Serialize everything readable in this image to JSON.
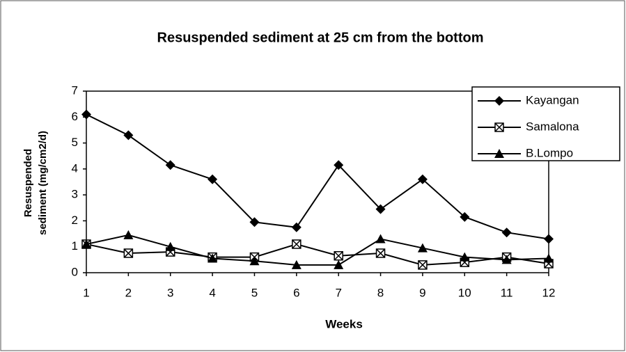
{
  "chart_data": {
    "type": "line",
    "title": "Resuspended sediment at 25 cm from the bottom",
    "x_label": "Weeks",
    "y_label": [
      "Resuspended",
      "sediment (mg/cm2/d)"
    ],
    "x": [
      1,
      2,
      3,
      4,
      5,
      6,
      7,
      8,
      9,
      10,
      11,
      12
    ],
    "xlim": [
      1,
      12
    ],
    "xticks": [
      1,
      2,
      3,
      4,
      5,
      6,
      7,
      8,
      9,
      10,
      11,
      12
    ],
    "ylim": [
      0,
      7
    ],
    "yticks": [
      0,
      1,
      2,
      3,
      4,
      5,
      6,
      7
    ],
    "grid": false,
    "legend": "upper right",
    "series": [
      {
        "name": "Kayangan",
        "color": "#000000",
        "marker": "diamond",
        "values": [
          6.1,
          5.3,
          4.15,
          3.6,
          1.95,
          1.75,
          4.15,
          2.45,
          3.6,
          2.15,
          1.55,
          1.3
        ]
      },
      {
        "name": "Samalona",
        "color": "#000000",
        "marker": "square",
        "values": [
          1.1,
          0.75,
          0.8,
          0.6,
          0.6,
          1.1,
          0.65,
          0.75,
          0.3,
          0.4,
          0.6,
          0.35
        ]
      },
      {
        "name": "B.Lompo",
        "color": "#000000",
        "marker": "triangle",
        "values": [
          1.1,
          1.45,
          1.0,
          0.55,
          0.45,
          0.3,
          0.3,
          1.3,
          0.95,
          0.6,
          0.5,
          0.55
        ]
      }
    ]
  }
}
